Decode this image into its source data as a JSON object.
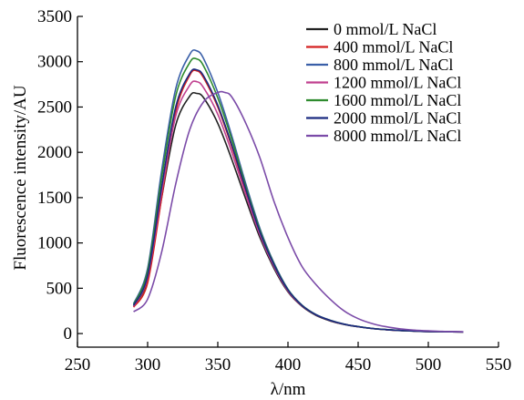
{
  "chart_data": {
    "type": "line",
    "xlabel": "λ/nm",
    "ylabel": "Fluorescence intensity/AU",
    "xlim": [
      250,
      550
    ],
    "ylim": [
      -150,
      3500
    ],
    "xticks": [
      250,
      300,
      350,
      400,
      450,
      500,
      550
    ],
    "yticks": [
      0,
      500,
      1000,
      1500,
      2000,
      2500,
      3000,
      3500
    ],
    "grid": false,
    "legend_position": "top-right",
    "series": [
      {
        "name": "0 mmol/L NaCl",
        "color": "#222222",
        "x": [
          290,
          300,
          310,
          320,
          330,
          335,
          340,
          350,
          360,
          370,
          380,
          390,
          400,
          410,
          420,
          430,
          440,
          450,
          460,
          470,
          480,
          490,
          500,
          510,
          525
        ],
        "y": [
          300,
          600,
          1500,
          2300,
          2620,
          2650,
          2600,
          2320,
          1920,
          1480,
          1060,
          720,
          460,
          300,
          200,
          140,
          100,
          75,
          55,
          42,
          33,
          27,
          22,
          20,
          18
        ]
      },
      {
        "name": "400 mmol/L NaCl",
        "color": "#d42020",
        "x": [
          290,
          300,
          310,
          320,
          330,
          335,
          340,
          350,
          360,
          370,
          380,
          390,
          400,
          410,
          420,
          430,
          440,
          450,
          460,
          470,
          480,
          490,
          500,
          510,
          525
        ],
        "y": [
          290,
          560,
          1500,
          2450,
          2850,
          2900,
          2820,
          2500,
          2060,
          1570,
          1110,
          750,
          470,
          305,
          205,
          145,
          102,
          76,
          56,
          43,
          34,
          28,
          23,
          20,
          18
        ]
      },
      {
        "name": "800 mmol/L NaCl",
        "color": "#3a5fa8",
        "x": [
          290,
          300,
          310,
          320,
          330,
          335,
          340,
          350,
          360,
          370,
          380,
          390,
          400,
          410,
          420,
          430,
          440,
          450,
          460,
          470,
          480,
          490,
          500,
          510,
          525
        ],
        "y": [
          330,
          720,
          1800,
          2700,
          3080,
          3120,
          3030,
          2660,
          2180,
          1650,
          1160,
          780,
          490,
          315,
          210,
          148,
          104,
          77,
          57,
          44,
          34,
          28,
          23,
          20,
          18
        ]
      },
      {
        "name": "1200 mmol/L NaCl",
        "color": "#c0408f",
        "x": [
          290,
          300,
          310,
          320,
          330,
          335,
          340,
          350,
          360,
          370,
          380,
          390,
          400,
          410,
          420,
          430,
          440,
          450,
          460,
          470,
          480,
          490,
          500,
          510,
          525
        ],
        "y": [
          300,
          620,
          1560,
          2400,
          2740,
          2780,
          2710,
          2420,
          2000,
          1530,
          1090,
          740,
          470,
          305,
          205,
          145,
          102,
          76,
          56,
          43,
          34,
          28,
          23,
          20,
          18
        ]
      },
      {
        "name": "1600 mmol/L NaCl",
        "color": "#2e8b2e",
        "x": [
          290,
          300,
          310,
          320,
          330,
          335,
          340,
          350,
          360,
          370,
          380,
          390,
          400,
          410,
          420,
          430,
          440,
          450,
          460,
          470,
          480,
          490,
          500,
          510,
          525
        ],
        "y": [
          320,
          690,
          1720,
          2620,
          2990,
          3030,
          2950,
          2600,
          2140,
          1620,
          1140,
          770,
          485,
          312,
          208,
          147,
          103,
          77,
          57,
          44,
          34,
          28,
          23,
          20,
          18
        ]
      },
      {
        "name": "2000 mmol/L NaCl",
        "color": "#1a2a80",
        "x": [
          290,
          300,
          310,
          320,
          330,
          335,
          340,
          350,
          360,
          370,
          380,
          390,
          400,
          410,
          420,
          430,
          440,
          450,
          460,
          470,
          480,
          490,
          500,
          510,
          525
        ],
        "y": [
          310,
          640,
          1620,
          2500,
          2870,
          2910,
          2840,
          2520,
          2080,
          1590,
          1120,
          760,
          480,
          310,
          207,
          146,
          103,
          76,
          56,
          43,
          34,
          28,
          23,
          20,
          18
        ]
      },
      {
        "name": "8000 mmol/L NaCl",
        "color": "#7b4ba8",
        "x": [
          290,
          300,
          310,
          320,
          330,
          340,
          350,
          355,
          360,
          370,
          380,
          390,
          400,
          410,
          420,
          430,
          440,
          450,
          460,
          470,
          480,
          490,
          500,
          510,
          525
        ],
        "y": [
          240,
          380,
          900,
          1650,
          2250,
          2560,
          2660,
          2660,
          2610,
          2320,
          1940,
          1460,
          1060,
          740,
          540,
          380,
          250,
          165,
          110,
          75,
          52,
          38,
          30,
          24,
          20
        ]
      }
    ]
  }
}
